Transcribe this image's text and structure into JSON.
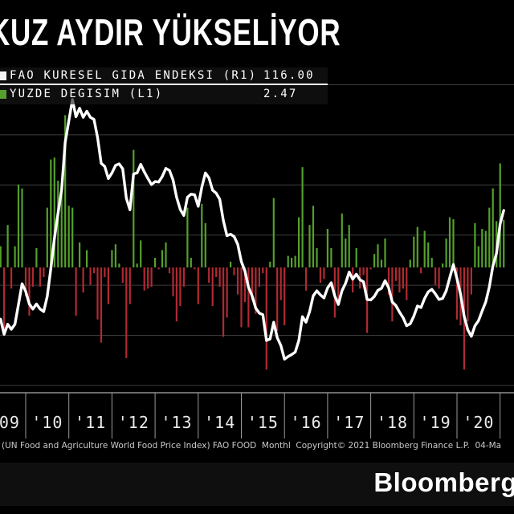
{
  "title": {
    "visible_text": "KUZ AYDIR YÜKSELİYOR"
  },
  "legend": {
    "items": [
      {
        "swatch_color": "#f2f2f2",
        "label": "FAO KURESEL GIDA ENDEKSI (R1)",
        "value": "116.00"
      },
      {
        "swatch_color": "#55a02c",
        "label": "YUZDE DEGISIM (L1)",
        "value": "2.47"
      }
    ]
  },
  "footer": {
    "source_text": "(UN Food and Agriculture World Food Price Index) FAO FOOD  Monthl  Copyright© 2021 Bloomberg Finance L.P.  04-Ma",
    "logo": "Bloomberg"
  },
  "chart_data": {
    "type": "combo (bar + line)",
    "frequency": "monthly",
    "x_range": [
      "2009-01",
      "2021-02"
    ],
    "x_tick_labels": [
      "'09",
      "'10",
      "'11",
      "'12",
      "'13",
      "'14",
      "'15",
      "'16",
      "'17",
      "'18",
      "'19",
      "'20"
    ],
    "y_axis_note": "axis value labels cropped out of frame; bars read left scale (L1, monthly % change), line reads right scale (R1, index points); grid on",
    "legend_position": "top-left",
    "colors": {
      "line": "#ffffff",
      "bar_positive": "#55a02c",
      "bar_negative": "#b02a33",
      "grid": "#3d3d3d",
      "axis": "#ababab",
      "tick_label": "#eaeaea",
      "background": "#000000"
    },
    "series": [
      {
        "name": "FAO KURESEL GIDA ENDEKSI",
        "axis": "R1",
        "type": "line",
        "last_value": 116.0,
        "values": [
          88.0,
          86.5,
          87.0,
          89.0,
          93.5,
          94.5,
          91.5,
          93.5,
          92.5,
          93.5,
          97.5,
          101.5,
          100.0,
          97.5,
          96.5,
          97.5,
          96.5,
          96.0,
          99.0,
          104.5,
          110.5,
          115.5,
          120.0,
          129.5,
          133.7,
          137.9,
          134.5,
          136.2,
          134.4,
          135.6,
          134.4,
          134.0,
          130.4,
          125.3,
          124.7,
          122.3,
          123.4,
          124.9,
          125.2,
          124.2,
          118.4,
          116.1,
          123.2,
          123.4,
          125.1,
          123.6,
          122.3,
          121.1,
          121.7,
          121.6,
          122.7,
          124.3,
          123.9,
          122.0,
          118.6,
          116.2,
          115.0,
          118.6,
          119.2,
          119.1,
          116.8,
          120.6,
          123.4,
          122.4,
          120.0,
          119.4,
          118.2,
          114.0,
          111.0,
          111.3,
          110.8,
          109.3,
          105.9,
          104.0,
          100.8,
          99.1,
          96.7,
          95.7,
          95.4,
          90.3,
          90.6,
          93.9,
          90.8,
          89.3,
          86.6,
          87.1,
          87.5,
          88.0,
          90.3,
          95.0,
          93.9,
          96.0,
          99.1,
          100.1,
          99.3,
          98.7,
          100.7,
          101.7,
          99.1,
          97.4,
          100.1,
          101.6,
          103.8,
          102.4,
          103.4,
          102.3,
          101.9,
          98.4,
          98.3,
          99.0,
          100.2,
          100.6,
          102.1,
          100.7,
          97.9,
          97.2,
          95.9,
          94.8,
          93.2,
          93.6,
          95.1,
          97.1,
          96.8,
          98.6,
          99.9,
          100.4,
          99.5,
          98.4,
          98.6,
          100.1,
          102.7,
          105.3,
          102.5,
          99.4,
          95.1,
          92.4,
          91.1,
          93.2,
          94.2,
          96.1,
          97.9,
          100.9,
          105.0,
          107.5,
          113.3,
          116.0
        ]
      },
      {
        "name": "YUZDE DEGISIM",
        "axis": "L1",
        "type": "bar",
        "last_value": 2.47,
        "values": [
          0,
          -1.7,
          0.6,
          2.3,
          5.1,
          1.1,
          -3.2,
          2.2,
          -1.1,
          1.1,
          4.3,
          4.1,
          -1.5,
          -2.5,
          -1.0,
          1.0,
          -1.0,
          -0.5,
          3.1,
          5.6,
          5.7,
          4.5,
          3.9,
          7.9,
          3.2,
          3.1,
          -2.5,
          1.3,
          -1.3,
          0.9,
          -0.9,
          -0.3,
          -2.7,
          -3.9,
          -0.5,
          -1.9,
          0.9,
          1.2,
          0.2,
          -0.8,
          -4.7,
          -1.9,
          6.1,
          0.2,
          1.4,
          -1.2,
          -1.1,
          -1.0,
          0.5,
          -0.1,
          0.9,
          1.3,
          -0.3,
          -1.5,
          -2.8,
          -2.0,
          -1.0,
          3.1,
          0.5,
          -0.1,
          -1.9,
          3.3,
          2.3,
          -0.8,
          -2.0,
          -0.5,
          -1.0,
          -3.6,
          -2.6,
          0.3,
          -0.4,
          -1.4,
          -3.1,
          -1.8,
          -3.1,
          -1.7,
          -2.4,
          -1.0,
          -0.3,
          -5.3,
          0.3,
          3.6,
          -3.3,
          -1.7,
          -3.0,
          0.6,
          0.5,
          0.6,
          2.6,
          5.2,
          -1.2,
          2.2,
          3.2,
          1.0,
          -0.8,
          -0.6,
          2.0,
          1.0,
          -2.6,
          -1.7,
          2.8,
          1.5,
          2.2,
          -1.3,
          1.0,
          -1.1,
          -0.4,
          -3.4,
          -0.1,
          0.7,
          1.2,
          0.4,
          1.5,
          -1.4,
          -2.8,
          -0.7,
          -1.3,
          -1.1,
          -1.7,
          0.4,
          1.6,
          2.1,
          -0.3,
          1.9,
          1.3,
          0.5,
          -0.9,
          -1.1,
          0.2,
          1.5,
          2.6,
          2.5,
          -2.7,
          -3.0,
          -5.3,
          -2.8,
          -1.4,
          2.3,
          1.1,
          2.0,
          1.9,
          3.1,
          4.1,
          2.4,
          5.4,
          2.47
        ]
      }
    ]
  }
}
